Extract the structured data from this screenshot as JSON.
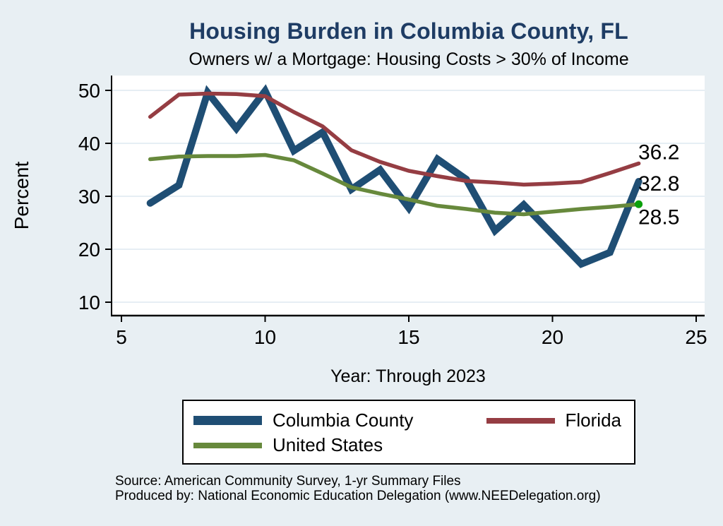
{
  "header": {
    "title": "Housing Burden in Columbia County, FL",
    "subtitle": "Owners w/ a Mortgage: Housing Costs > 30% of Income"
  },
  "chart_data": {
    "type": "line",
    "x": [
      6,
      7,
      8,
      9,
      10,
      11,
      12,
      13,
      14,
      15,
      16,
      17,
      18,
      19,
      20,
      21,
      22,
      23
    ],
    "series": [
      {
        "name": "Columbia County",
        "color": "#1f4e74",
        "width": 10,
        "values": [
          28.7,
          32.1,
          49.6,
          42.8,
          49.9,
          38.6,
          42.1,
          31.3,
          35.0,
          27.8,
          37.0,
          33.2,
          23.5,
          28.4,
          22.8,
          17.2,
          19.4,
          32.8
        ],
        "end_label": "32.8",
        "end_marker": false
      },
      {
        "name": "Florida",
        "color": "#953d43",
        "width": 5.5,
        "values": [
          45.0,
          49.2,
          49.4,
          49.3,
          48.9,
          45.9,
          43.2,
          38.7,
          36.5,
          34.8,
          33.8,
          32.9,
          32.6,
          32.2,
          32.4,
          32.7,
          34.4,
          36.2
        ],
        "end_label": "36.2",
        "end_marker": false
      },
      {
        "name": "United States",
        "color": "#67893c",
        "width": 5.5,
        "values": [
          37.0,
          37.5,
          37.6,
          37.6,
          37.8,
          36.8,
          34.3,
          31.7,
          30.5,
          29.4,
          28.2,
          27.6,
          26.9,
          26.6,
          27.1,
          27.6,
          28.0,
          28.5
        ],
        "end_label": "28.5",
        "end_marker": true
      }
    ],
    "title": "Housing Burden in Columbia County, FL",
    "subtitle": "Owners w/ a Mortgage: Housing Costs > 30% of Income",
    "xlabel": "Year: Through 2023",
    "ylabel": "Percent",
    "xticks": [
      5,
      10,
      15,
      20,
      25
    ],
    "yticks": [
      10,
      20,
      30,
      40,
      50
    ],
    "xlim": [
      4.65,
      25.3
    ],
    "ylim": [
      7.5,
      52.8
    ],
    "grid": true,
    "legend_position": "bottom"
  },
  "legend": {
    "items": [
      "Columbia County",
      "Florida",
      "United States"
    ]
  },
  "footer": {
    "source_line1": "Source: American Community Survey, 1-yr Summary Files",
    "source_line2": "Produced by: National Economic Education Delegation (www.NEEDelegation.org)"
  },
  "colors": {
    "background": "#e8eff3",
    "plot_background": "#ffffff",
    "gridline": "#dde9f1",
    "axis": "#000000",
    "title_text": "#1e3c64",
    "columbia_county": "#1f4e74",
    "florida": "#953d43",
    "united_states": "#67893c",
    "end_dot": "#0ba00b"
  }
}
